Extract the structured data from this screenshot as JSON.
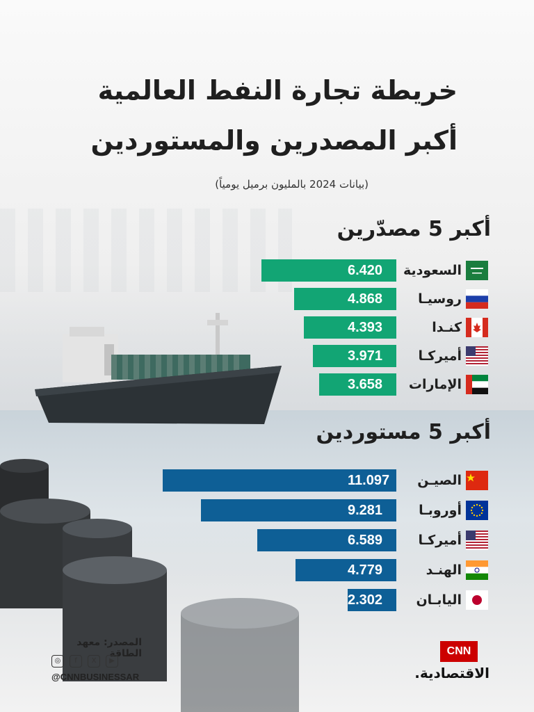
{
  "header": {
    "title_line1": "خريطة تجارة النفط العالمية",
    "title_line2": "أكبر المصدرين والمستوردين",
    "subtitle": "(بيانات 2024 بالمليون برميل يومياً)"
  },
  "colors": {
    "exporters_bar": "#12a574",
    "importers_bar": "#0e5f96"
  },
  "chart_data": [
    {
      "type": "bar",
      "title": "أكبر 5 مصدّرين",
      "categories": [
        "السعودية",
        "روسيـا",
        "كنـدا",
        "أميركـا",
        "الإمارات"
      ],
      "values": [
        6.42,
        4.868,
        4.393,
        3.971,
        3.658
      ],
      "value_labels": [
        "6.420",
        "4.868",
        "4.393",
        "3.971",
        "3.658"
      ],
      "flags": [
        "saudi-arabia-flag",
        "russia-flag",
        "canada-flag",
        "usa-flag",
        "uae-flag"
      ],
      "orientation": "horizontal",
      "xlim": [
        0,
        11.097
      ],
      "grid": false
    },
    {
      "type": "bar",
      "title": "أكبر 5 مستوردين",
      "categories": [
        "الصيـن",
        "أوروبـا",
        "أميركـا",
        "الهنـد",
        "اليابـان"
      ],
      "values": [
        11.097,
        9.281,
        6.589,
        4.779,
        2.302
      ],
      "value_labels": [
        "11.097",
        "9.281",
        "6.589",
        "4.779",
        "2.302"
      ],
      "flags": [
        "china-flag",
        "eu-flag",
        "usa-flag",
        "india-flag",
        "japan-flag"
      ],
      "orientation": "horizontal",
      "xlim": [
        0,
        11.097
      ],
      "grid": false
    }
  ],
  "footer": {
    "source": "المصدر: معهد الطاقة",
    "handle": "@CNNBUSINESSAR",
    "social_icons": [
      "instagram-icon",
      "facebook-icon",
      "x-icon",
      "youtube-icon"
    ],
    "logo_box": "CNN",
    "logo_text": "الاقتصادية."
  }
}
